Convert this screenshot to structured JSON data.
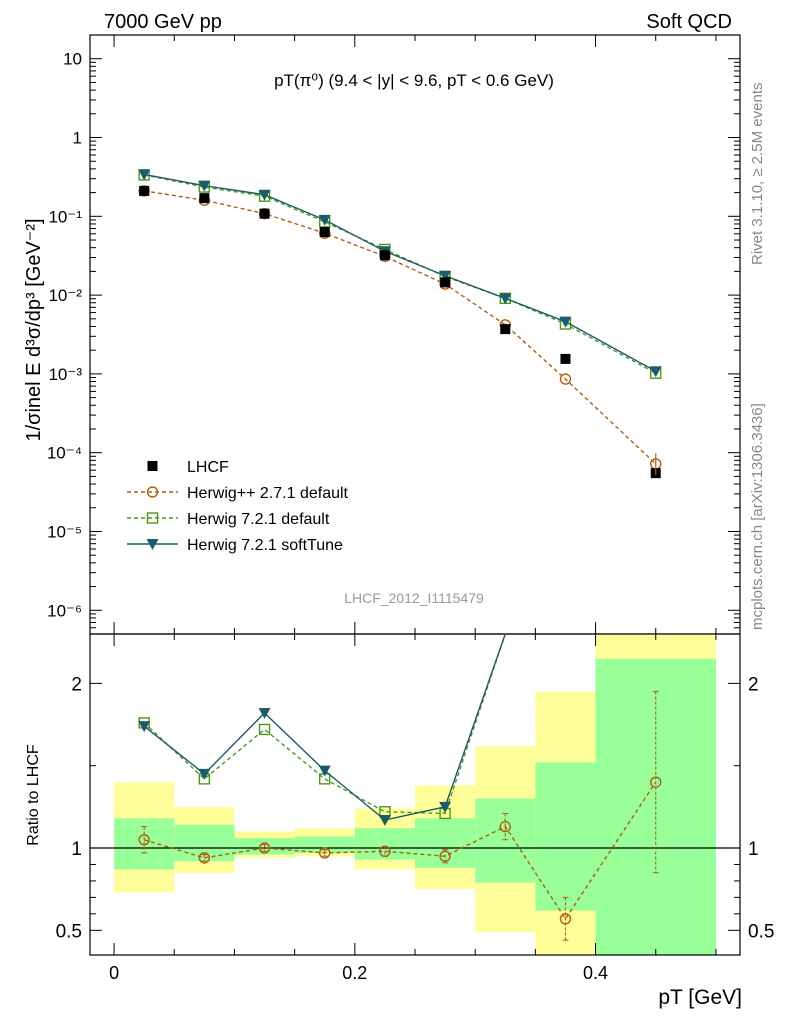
{
  "header": {
    "left": "7000 GeV pp",
    "right": "Soft QCD"
  },
  "side": {
    "rivet": "Rivet 3.1.10, ≥ 2.5M events",
    "mcplots": "mcplots.cern.ch [arXiv:1306.3436]"
  },
  "watermark": "LHCF_2012_I1115479",
  "chart_data": [
    {
      "type": "scatter",
      "title": "pT(π⁰) (9.4 < |y| < 9.6, pT < 0.6 GeV)",
      "ylabel": "1/σinel E d³σ/dp³ [GeV⁻²]",
      "xlabel": "pT [GeV]",
      "yscale": "log",
      "xlim": [
        -0.02,
        0.52
      ],
      "ylim": [
        5e-07,
        20
      ],
      "ytick_labels": [
        "10⁻⁶",
        "10⁻⁵",
        "10⁻⁴",
        "10⁻³",
        "10⁻²",
        "10⁻¹",
        "1",
        "10"
      ],
      "x": [
        0.025,
        0.075,
        0.125,
        0.175,
        0.225,
        0.275,
        0.325,
        0.375,
        0.45
      ],
      "series": [
        {
          "name": "LHCF",
          "color": "#000000",
          "marker": "filled-square",
          "values": [
            0.21,
            0.17,
            0.108,
            0.063,
            0.032,
            0.0145,
            0.0037,
            0.00155,
            5.5e-05
          ]
        },
        {
          "name": "Herwig++ 2.7.1 default",
          "color": "#b15e11",
          "marker": "open-circle",
          "line": "dashed",
          "values": [
            0.21,
            0.16,
            0.108,
            0.061,
            0.031,
            0.0138,
            0.0042,
            0.00086,
            7.2e-05
          ]
        },
        {
          "name": "Herwig 7.2.1 default",
          "color": "#4a9a1a",
          "marker": "open-square",
          "line": "dashed",
          "values": [
            0.335,
            0.235,
            0.18,
            0.085,
            0.038,
            0.0172,
            0.0091,
            0.0043,
            0.00102
          ]
        },
        {
          "name": "Herwig 7.2.1 softTune",
          "color": "#1d5a6b",
          "marker": "filled-triangle-down",
          "line": "solid",
          "values": [
            0.34,
            0.245,
            0.188,
            0.09,
            0.036,
            0.0176,
            0.0091,
            0.0046,
            0.00108
          ]
        }
      ]
    },
    {
      "type": "scatter",
      "ylabel": "Ratio to LHCF",
      "xlabel": "pT [GeV]",
      "xlim": [
        -0.02,
        0.52
      ],
      "ylim": [
        0.35,
        2.3
      ],
      "xtick_labels": [
        "0",
        "0.2",
        "0.4"
      ],
      "ytick_labels": [
        "0.5",
        "1",
        "2"
      ],
      "bands": {
        "edges": [
          0,
          0.05,
          0.1,
          0.15,
          0.2,
          0.25,
          0.3,
          0.35,
          0.4,
          0.5
        ],
        "yellow_low": [
          0.73,
          0.85,
          0.94,
          0.95,
          0.87,
          0.75,
          0.49,
          0.35,
          0.35
        ],
        "yellow_high": [
          1.4,
          1.25,
          1.1,
          1.12,
          1.24,
          1.38,
          1.62,
          1.95,
          2.3
        ],
        "green_low": [
          0.87,
          0.92,
          0.96,
          0.97,
          0.93,
          0.88,
          0.79,
          0.62,
          0.35
        ],
        "green_high": [
          1.18,
          1.14,
          1.06,
          1.07,
          1.12,
          1.18,
          1.3,
          1.52,
          2.15
        ]
      },
      "x": [
        0.025,
        0.075,
        0.125,
        0.175,
        0.225,
        0.275,
        0.325,
        0.375,
        0.45
      ],
      "series": [
        {
          "name": "Herwig++ 2.7.1 default",
          "color": "#b15e11",
          "values": [
            1.05,
            0.94,
            1.0,
            0.97,
            0.98,
            0.95,
            1.13,
            0.57,
            1.4
          ],
          "errors": [
            0.08,
            0.02,
            0.02,
            0.02,
            0.03,
            0.04,
            0.08,
            0.13,
            0.55
          ]
        },
        {
          "name": "Herwig 7.2.1 default",
          "color": "#4a9a1a",
          "values": [
            1.76,
            1.42,
            1.72,
            1.42,
            1.22,
            1.21,
            2.3
          ]
        },
        {
          "name": "Herwig 7.2.1 softTune",
          "color": "#1d5a6b",
          "values": [
            1.74,
            1.45,
            1.82,
            1.47,
            1.17,
            1.25,
            2.3
          ]
        }
      ]
    }
  ]
}
